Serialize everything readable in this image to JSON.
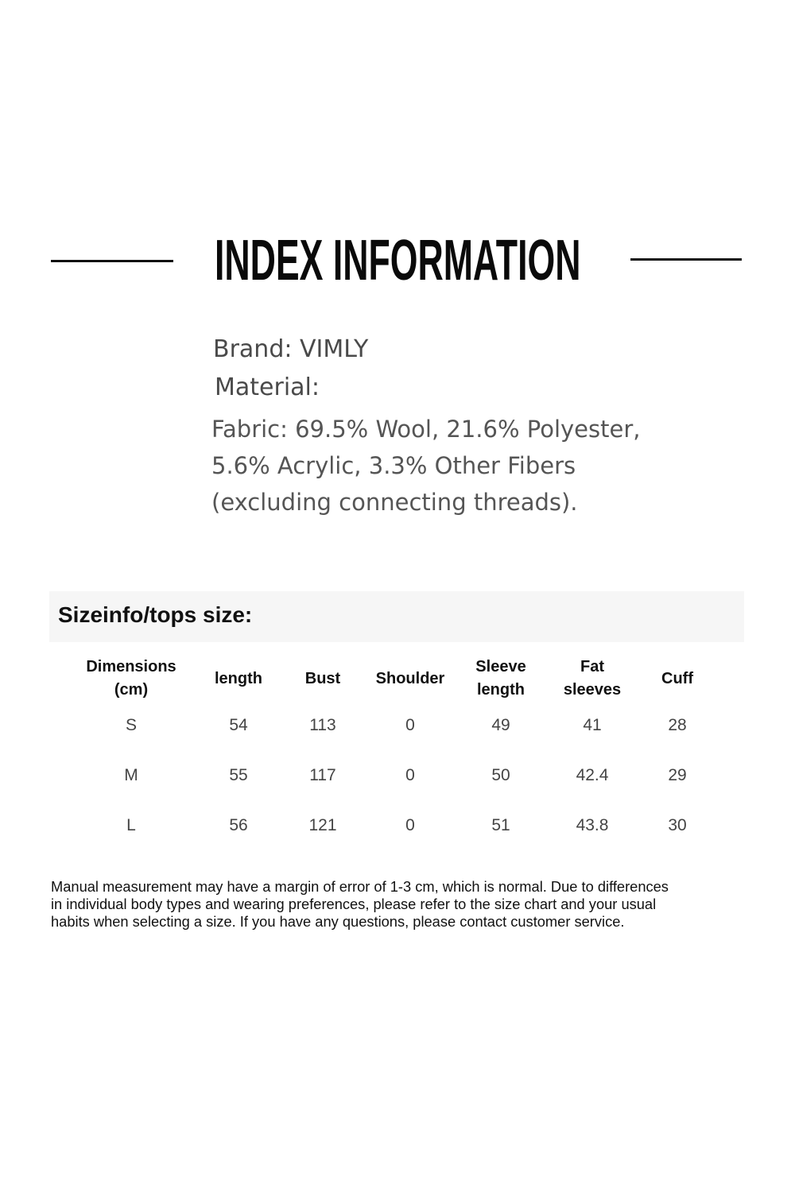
{
  "title": "INDEX INFORMATION",
  "brand": "Brand: VIMLY",
  "material_label": "Material:",
  "fabric_lines": [
    "Fabric: 69.5% Wool, 21.6% Polyester,",
    "5.6% Acrylic, 3.3% Other Fibers",
    "(excluding connecting threads)."
  ],
  "size_table": {
    "heading": "Sizeinfo/tops size:",
    "columns": [
      [
        "Dimensions",
        "(cm)"
      ],
      [
        "length"
      ],
      [
        "Bust"
      ],
      [
        "Shoulder"
      ],
      [
        "Sleeve",
        "length"
      ],
      [
        "Fat",
        "sleeves"
      ],
      [
        "Cuff"
      ]
    ],
    "rows": [
      [
        "S",
        "54",
        "113",
        "0",
        "49",
        "41",
        "28"
      ],
      [
        "M",
        "55",
        "117",
        "0",
        "50",
        "42.4",
        "29"
      ],
      [
        "L",
        "56",
        "121",
        "0",
        "51",
        "43.8",
        "30"
      ]
    ]
  },
  "note_lines": [
    "Manual measurement may have a margin of error of 1-3 cm, which is normal. Due to differences",
    "in individual body types and wearing preferences, please refer to the size chart and your usual",
    "habits when selecting a size. If you have any questions, please contact customer service."
  ]
}
